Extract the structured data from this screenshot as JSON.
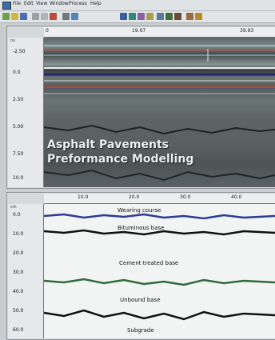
{
  "menubar": {
    "items": [
      "File",
      "Edit",
      "View",
      "Window",
      "Process",
      "Help"
    ]
  },
  "toolbar": {
    "icons": [
      "new-icon",
      "open-icon",
      "save-icon",
      "cut-icon",
      "copy-icon",
      "paste-icon",
      "print-icon",
      "zoom-icon",
      "chart-icon",
      "layers-icon",
      "settings-icon",
      "help-icon"
    ]
  },
  "gpr_panel": {
    "ruler_ticks": [
      "0",
      "19.97",
      "39.93"
    ],
    "depth_labels": [
      "-2.50",
      "0.0",
      "2.50",
      "5.00",
      "7.50",
      "10.0"
    ],
    "unit_top": "ns",
    "watermark_line1": "Asphalt Pavements",
    "watermark_line2": "Preformance Modelling"
  },
  "profile_panel": {
    "unit_top": "cm",
    "ruler_ticks": [
      "10.0",
      "20.0",
      "30.0",
      "40.0"
    ],
    "depth_labels": [
      "0.0",
      "10.0",
      "20.0",
      "30.0",
      "40.0",
      "50.0",
      "60.0"
    ],
    "layers": [
      "Wearing course",
      "Bituminous base",
      "Cement treated base",
      "Unbound base",
      "Subgrade"
    ]
  },
  "colors": {
    "gpr_dark": "#3e4a4c",
    "layer_line_dark": "#111111",
    "layer_line_green": "#2f6b3a",
    "layer_line_blue": "#2a3f8f",
    "profile_bg": "#f2f3f3"
  }
}
